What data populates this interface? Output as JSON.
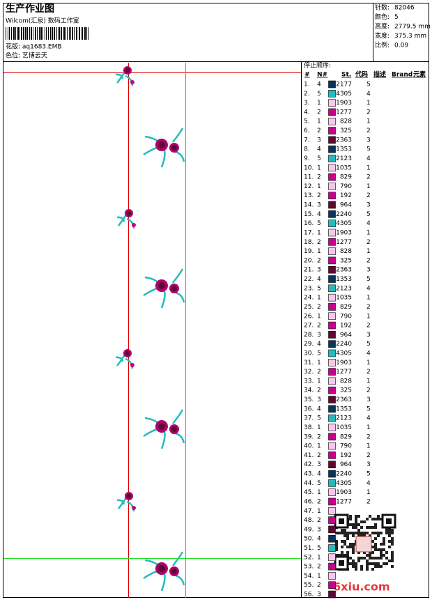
{
  "header": {
    "title": "生产作业图",
    "studio": "Wilcom(汇泉) 数码工作室",
    "design": "花版: aq1683.EMB",
    "colorway": "色位: 艺博云天",
    "stats": [
      {
        "label": "针数:",
        "value": "82046"
      },
      {
        "label": "颜色:",
        "value": "5"
      },
      {
        "label": "高度:",
        "value": "2779.5 mm"
      },
      {
        "label": "宽度:",
        "value": "375.3 mm"
      },
      {
        "label": "比例:",
        "value": "0.09"
      }
    ]
  },
  "table": {
    "title": "停止顺序:",
    "columns": [
      "#",
      "N#",
      "St.",
      "代码",
      "描述",
      "Brand",
      "元素"
    ],
    "palette": {
      "1": "#f7c8ee",
      "2": "#c8008c",
      "3": "#5c0a32",
      "4": "#0b3459",
      "5": "#22bcbc"
    },
    "rows": [
      {
        "no": "1.",
        "color": "4",
        "st": "2177",
        "code": "5"
      },
      {
        "no": "2.",
        "color": "5",
        "st": "4305",
        "code": "4"
      },
      {
        "no": "3.",
        "color": "1",
        "st": "1903",
        "code": "1"
      },
      {
        "no": "4.",
        "color": "2",
        "st": "1277",
        "code": "2"
      },
      {
        "no": "5.",
        "color": "1",
        "st": "828",
        "code": "1"
      },
      {
        "no": "6.",
        "color": "2",
        "st": "325",
        "code": "2"
      },
      {
        "no": "7.",
        "color": "3",
        "st": "2363",
        "code": "3"
      },
      {
        "no": "8.",
        "color": "4",
        "st": "1353",
        "code": "5"
      },
      {
        "no": "9.",
        "color": "5",
        "st": "2123",
        "code": "4"
      },
      {
        "no": "10.",
        "color": "1",
        "st": "1035",
        "code": "1"
      },
      {
        "no": "11.",
        "color": "2",
        "st": "829",
        "code": "2"
      },
      {
        "no": "12.",
        "color": "1",
        "st": "790",
        "code": "1"
      },
      {
        "no": "13.",
        "color": "2",
        "st": "192",
        "code": "2"
      },
      {
        "no": "14.",
        "color": "3",
        "st": "964",
        "code": "3"
      },
      {
        "no": "15.",
        "color": "4",
        "st": "2240",
        "code": "5"
      },
      {
        "no": "16.",
        "color": "5",
        "st": "4305",
        "code": "4"
      },
      {
        "no": "17.",
        "color": "1",
        "st": "1903",
        "code": "1"
      },
      {
        "no": "18.",
        "color": "2",
        "st": "1277",
        "code": "2"
      },
      {
        "no": "19.",
        "color": "1",
        "st": "828",
        "code": "1"
      },
      {
        "no": "20.",
        "color": "2",
        "st": "325",
        "code": "2"
      },
      {
        "no": "21.",
        "color": "3",
        "st": "2363",
        "code": "3"
      },
      {
        "no": "22.",
        "color": "4",
        "st": "1353",
        "code": "5"
      },
      {
        "no": "23.",
        "color": "5",
        "st": "2123",
        "code": "4"
      },
      {
        "no": "24.",
        "color": "1",
        "st": "1035",
        "code": "1"
      },
      {
        "no": "25.",
        "color": "2",
        "st": "829",
        "code": "2"
      },
      {
        "no": "26.",
        "color": "1",
        "st": "790",
        "code": "1"
      },
      {
        "no": "27.",
        "color": "2",
        "st": "192",
        "code": "2"
      },
      {
        "no": "28.",
        "color": "3",
        "st": "964",
        "code": "3"
      },
      {
        "no": "29.",
        "color": "4",
        "st": "2240",
        "code": "5"
      },
      {
        "no": "30.",
        "color": "5",
        "st": "4305",
        "code": "4"
      },
      {
        "no": "31.",
        "color": "1",
        "st": "1903",
        "code": "1"
      },
      {
        "no": "32.",
        "color": "2",
        "st": "1277",
        "code": "2"
      },
      {
        "no": "33.",
        "color": "1",
        "st": "828",
        "code": "1"
      },
      {
        "no": "34.",
        "color": "2",
        "st": "325",
        "code": "2"
      },
      {
        "no": "35.",
        "color": "3",
        "st": "2363",
        "code": "3"
      },
      {
        "no": "36.",
        "color": "4",
        "st": "1353",
        "code": "5"
      },
      {
        "no": "37.",
        "color": "5",
        "st": "2123",
        "code": "4"
      },
      {
        "no": "38.",
        "color": "1",
        "st": "1035",
        "code": "1"
      },
      {
        "no": "39.",
        "color": "2",
        "st": "829",
        "code": "2"
      },
      {
        "no": "40.",
        "color": "1",
        "st": "790",
        "code": "1"
      },
      {
        "no": "41.",
        "color": "2",
        "st": "192",
        "code": "2"
      },
      {
        "no": "42.",
        "color": "3",
        "st": "964",
        "code": "3"
      },
      {
        "no": "43.",
        "color": "4",
        "st": "2240",
        "code": "5"
      },
      {
        "no": "44.",
        "color": "5",
        "st": "4305",
        "code": "4"
      },
      {
        "no": "45.",
        "color": "1",
        "st": "1903",
        "code": "1"
      },
      {
        "no": "46.",
        "color": "2",
        "st": "1277",
        "code": "2"
      },
      {
        "no": "47.",
        "color": "1"
      },
      {
        "no": "48.",
        "color": "2"
      },
      {
        "no": "49.",
        "color": "3"
      },
      {
        "no": "50.",
        "color": "4"
      },
      {
        "no": "51.",
        "color": "5"
      },
      {
        "no": "52.",
        "color": "1"
      },
      {
        "no": "53.",
        "color": "2"
      },
      {
        "no": "54.",
        "color": "1"
      },
      {
        "no": "55.",
        "color": "2"
      },
      {
        "no": "56.",
        "color": "3"
      }
    ]
  },
  "watermark": "6xiu.com"
}
